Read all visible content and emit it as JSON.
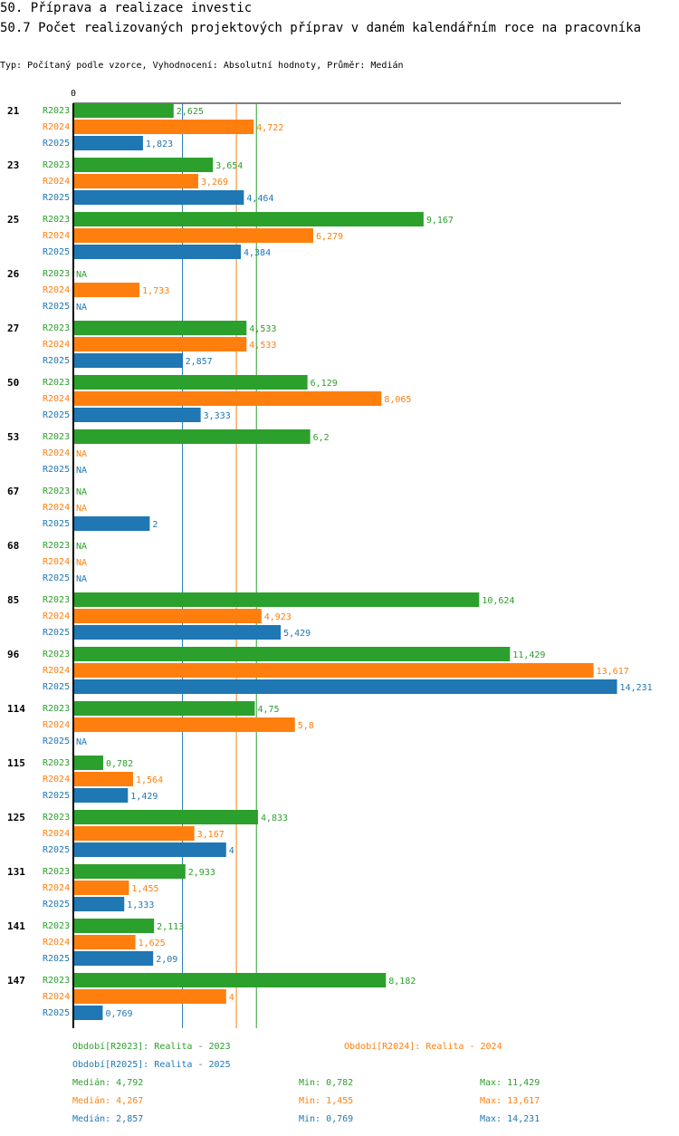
{
  "header": {
    "title": "50. Příprava a realizace investic",
    "subtitle": "50.7 Počet realizovaných projektových příprav v daném kalendářním roce na pracovníka",
    "type_line": "Typ: Počítaný podle vzorce, Vyhodnocení: Absolutní hodnoty, Průměr: Medián"
  },
  "colors": {
    "R2023": "#2ca02c",
    "R2024": "#ff7f0e",
    "R2025": "#1f77b4"
  },
  "chart_data": {
    "type": "bar",
    "orientation": "horizontal",
    "x_tick_label": "0",
    "na_label": "NA",
    "categories": [
      "21",
      "23",
      "25",
      "26",
      "27",
      "50",
      "53",
      "67",
      "68",
      "85",
      "96",
      "114",
      "115",
      "125",
      "131",
      "141",
      "147"
    ],
    "series": [
      {
        "name": "R2023",
        "values": [
          2.625,
          3.654,
          9.167,
          null,
          4.533,
          6.129,
          6.2,
          null,
          null,
          10.624,
          11.429,
          4.75,
          0.782,
          4.833,
          2.933,
          2.113,
          8.182
        ],
        "labels": [
          "2,625",
          "3,654",
          "9,167",
          "NA",
          "4,533",
          "6,129",
          "6,2",
          "NA",
          "NA",
          "10,624",
          "11,429",
          "4,75",
          "0,782",
          "4,833",
          "2,933",
          "2,113",
          "8,182"
        ]
      },
      {
        "name": "R2024",
        "values": [
          4.722,
          3.269,
          6.279,
          1.733,
          4.533,
          8.065,
          null,
          null,
          null,
          4.923,
          13.617,
          5.8,
          1.564,
          3.167,
          1.455,
          1.625,
          4
        ],
        "labels": [
          "4,722",
          "3,269",
          "6,279",
          "1,733",
          "4,533",
          "8,065",
          "NA",
          "NA",
          "NA",
          "4,923",
          "13,617",
          "5,8",
          "1,564",
          "3,167",
          "1,455",
          "1,625",
          "4"
        ]
      },
      {
        "name": "R2025",
        "values": [
          1.823,
          4.464,
          4.384,
          null,
          2.857,
          3.333,
          null,
          2,
          null,
          5.429,
          14.231,
          null,
          1.429,
          4,
          1.333,
          2.09,
          0.769
        ],
        "labels": [
          "1,823",
          "4,464",
          "4,384",
          "NA",
          "2,857",
          "3,333",
          "NA",
          "2",
          "NA",
          "5,429",
          "14,231",
          "NA",
          "1,429",
          "4",
          "1,333",
          "2,09",
          "0,769"
        ]
      }
    ],
    "median_lines": [
      {
        "series": "R2023",
        "value": 4.792
      },
      {
        "series": "R2024",
        "value": 4.267
      },
      {
        "series": "R2025",
        "value": 2.857
      }
    ],
    "xlim": [
      0,
      14.231
    ]
  },
  "legend": {
    "r2023": "Období[R2023]: Realita - 2023",
    "r2024": "Období[R2024]: Realita - 2024",
    "r2025": "Období[R2025]: Realita - 2025"
  },
  "stats": [
    {
      "median": "Medián: 4,792",
      "min": "Min: 0,782",
      "max": "Max: 11,429"
    },
    {
      "median": "Medián: 4,267",
      "min": "Min: 1,455",
      "max": "Max: 13,617"
    },
    {
      "median": "Medián: 2,857",
      "min": "Min: 0,769",
      "max": "Max: 14,231"
    }
  ]
}
